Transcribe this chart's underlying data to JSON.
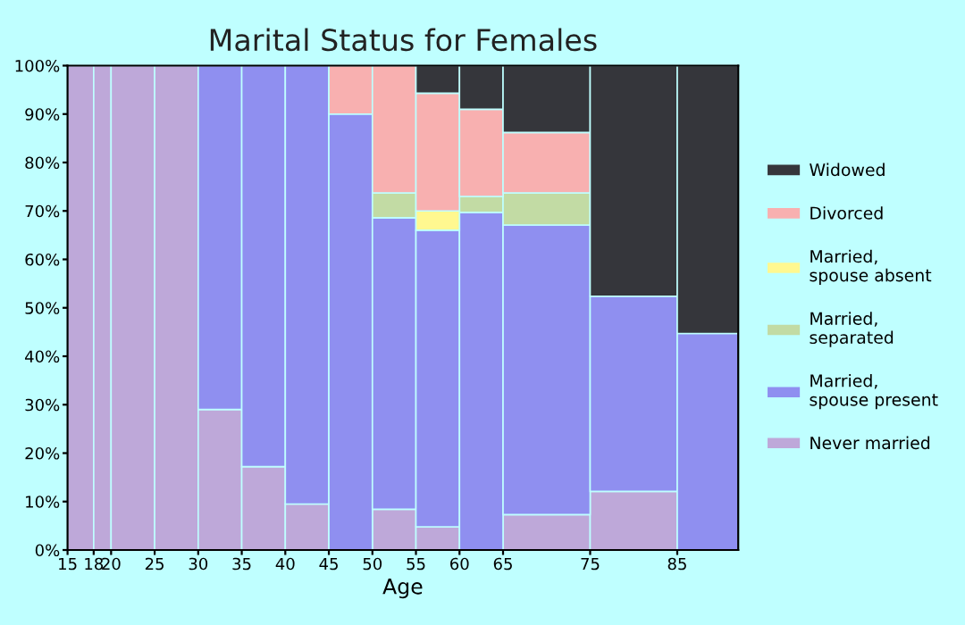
{
  "chart_data": {
    "type": "bar",
    "stacked": true,
    "title": "Marital Status for Females",
    "xlabel": "Age",
    "x": [
      16.5,
      19,
      22.5,
      27.5,
      32.5,
      37.5,
      42.5,
      47.5,
      52.5,
      57.5,
      62.5,
      70,
      80,
      88.5
    ],
    "series": [
      {
        "name": "Never married",
        "color": "#bea8d9",
        "values": [
          100,
          100,
          100,
          100,
          29,
          17.2,
          9.5,
          null,
          8.4,
          4.8,
          null,
          7.3,
          12.1,
          null
        ]
      },
      {
        "name": "Married, spouse present",
        "color": "#8f8ff0",
        "values": [
          null,
          null,
          null,
          null,
          71,
          82.8,
          90.5,
          90,
          60.2,
          61.2,
          69.7,
          59.8,
          40.3,
          44.7
        ]
      },
      {
        "name": "Married, separated",
        "color": "#c2dba4",
        "values": [
          null,
          null,
          null,
          null,
          null,
          null,
          null,
          null,
          5.1,
          null,
          3.3,
          6.6,
          null,
          null
        ]
      },
      {
        "name": "Married, spouse absent",
        "color": "#fff890",
        "values": [
          null,
          null,
          null,
          null,
          null,
          null,
          null,
          null,
          null,
          4,
          null,
          null,
          null,
          null
        ]
      },
      {
        "name": "Divorced",
        "color": "#f8b0b0",
        "values": [
          null,
          null,
          null,
          null,
          null,
          null,
          null,
          10,
          26.3,
          24.3,
          18,
          12.5,
          null,
          null
        ]
      },
      {
        "name": "Widowed",
        "color": "#35363b",
        "values": [
          null,
          null,
          null,
          null,
          null,
          null,
          null,
          null,
          null,
          5.7,
          9,
          13.8,
          47.6,
          55.3
        ]
      }
    ],
    "xlim": [
      15,
      92
    ],
    "xticks": [
      15,
      18,
      20,
      25,
      30,
      35,
      40,
      45,
      50,
      55,
      60,
      65,
      75,
      85
    ],
    "ylim": [
      0,
      100
    ],
    "yticks": [
      {
        "value": 0,
        "label": "0%"
      },
      {
        "value": 10,
        "label": "10%"
      },
      {
        "value": 20,
        "label": "20%"
      },
      {
        "value": 30,
        "label": "30%"
      },
      {
        "value": 40,
        "label": "40%"
      },
      {
        "value": 50,
        "label": "50%"
      },
      {
        "value": 60,
        "label": "60%"
      },
      {
        "value": 70,
        "label": "70%"
      },
      {
        "value": 80,
        "label": "80%"
      },
      {
        "value": 90,
        "label": "90%"
      },
      {
        "value": 100,
        "label": "100%"
      }
    ],
    "legend": "right"
  }
}
